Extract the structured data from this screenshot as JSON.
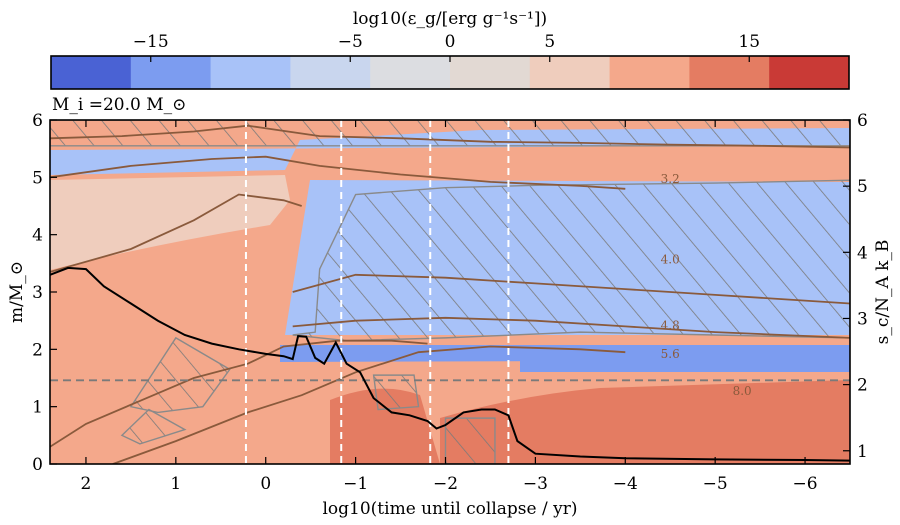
{
  "chart_data": {
    "type": "heatmap",
    "title": "",
    "annotation": "M_i =20.0 M_⊙",
    "colorbar": {
      "label": "log10(ε_g/[erg g⁻¹s⁻¹])",
      "range": [
        -20,
        20
      ],
      "ticks": [
        -15,
        -5,
        0,
        5,
        15
      ],
      "tick_labels": [
        "−15",
        "−5",
        "0",
        "5",
        "15"
      ],
      "bins": [
        -20,
        -15,
        -10,
        -5,
        -2.5,
        0,
        2.5,
        5,
        10,
        15,
        20
      ],
      "colors": [
        "#4a62d4",
        "#7c9cf0",
        "#a8c2f8",
        "#c9d6ee",
        "#dcdde1",
        "#e2d9d3",
        "#efcdbd",
        "#f4a88b",
        "#e47c62",
        "#c93a36"
      ]
    },
    "xlabel": "log10(time until collapse / yr)",
    "ylabel_left": "m/M_⊙",
    "ylabel_right": "s_c/N_A k_B",
    "xlim": [
      2.4,
      -6.5
    ],
    "ylim_left": [
      0,
      6
    ],
    "ylim_right": [
      0.8,
      6
    ],
    "xticks": [
      2,
      1,
      0,
      -1,
      -2,
      -3,
      -4,
      -5,
      -6
    ],
    "xtick_labels": [
      "2",
      "1",
      "0",
      "−1",
      "−2",
      "−3",
      "−4",
      "−5",
      "−6"
    ],
    "yticks_left": [
      0,
      1,
      2,
      3,
      4,
      5,
      6
    ],
    "yticks_right": [
      1,
      2,
      3,
      4,
      5,
      6
    ],
    "vertical_dashed_lines_x": [
      0.22,
      -0.84,
      -1.83,
      -2.7
    ],
    "horizontal_dashed_line_y": 1.46,
    "central_entropy_curve": {
      "x": [
        2.4,
        2.2,
        2.0,
        1.8,
        1.5,
        1.2,
        0.9,
        0.6,
        0.3,
        0.0,
        -0.2,
        -0.3,
        -0.36,
        -0.45,
        -0.55,
        -0.65,
        -0.78,
        -0.9,
        -1.05,
        -1.2,
        -1.4,
        -1.6,
        -1.8,
        -1.9,
        -2.0,
        -2.2,
        -2.4,
        -2.55,
        -2.7,
        -2.8,
        -3.0,
        -3.5,
        -4.0,
        -5.0,
        -6.0,
        -6.5
      ],
      "y": [
        3.3,
        3.42,
        3.4,
        3.1,
        2.8,
        2.5,
        2.25,
        2.1,
        2.0,
        1.92,
        1.88,
        1.83,
        2.23,
        2.22,
        1.85,
        1.75,
        2.12,
        1.75,
        1.6,
        1.15,
        0.9,
        0.85,
        0.75,
        0.62,
        0.68,
        0.9,
        0.95,
        0.95,
        0.85,
        0.4,
        0.18,
        0.13,
        0.1,
        0.08,
        0.07,
        0.06
      ]
    },
    "mass_contours": [
      {
        "x": [
          2.4,
          1.5,
          0.6,
          0.0,
          -0.6,
          -1.5,
          -2.5,
          -3.5,
          -4.0
        ],
        "y": [
          5.0,
          5.2,
          5.32,
          5.36,
          5.2,
          5.05,
          4.92,
          4.85,
          4.8
        ]
      },
      {
        "x": [
          2.4,
          1.5,
          0.8,
          0.3,
          -0.2,
          -0.4
        ],
        "y": [
          3.35,
          3.75,
          4.25,
          4.7,
          4.6,
          4.5
        ]
      },
      {
        "x": [
          2.4,
          1.6,
          0.8,
          0.2,
          -0.6,
          -1.5,
          -2.5,
          -3.5,
          -4.5,
          -5.5,
          -6.5
        ],
        "y": [
          5.68,
          5.72,
          5.8,
          5.9,
          5.72,
          5.68,
          5.62,
          5.6,
          5.57,
          5.55,
          5.52
        ]
      },
      {
        "x": [
          -0.3,
          -1.0,
          -2.0,
          -3.0,
          -4.0,
          -5.0,
          -6.5
        ],
        "y": [
          3.0,
          3.3,
          3.25,
          3.15,
          3.05,
          2.95,
          2.8
        ]
      },
      {
        "x": [
          -0.3,
          -1.0,
          -2.0,
          -3.0,
          -4.0,
          -5.0,
          -6.5
        ],
        "y": [
          2.4,
          2.5,
          2.55,
          2.5,
          2.4,
          2.3,
          2.2
        ]
      },
      {
        "x": [
          2.4,
          2.0,
          1.4,
          0.8,
          0.2,
          -0.2,
          -0.8,
          -1.4,
          -1.8
        ],
        "y": [
          0.3,
          0.7,
          1.1,
          1.5,
          1.75,
          2.05,
          2.15,
          2.15,
          2.1
        ]
      },
      {
        "x": [
          1.7,
          1.0,
          0.2,
          -0.4,
          -1.0,
          -1.7,
          -2.5,
          -3.5,
          -4.0
        ],
        "y": [
          0.0,
          0.4,
          0.9,
          1.2,
          1.6,
          1.95,
          2.05,
          2.0,
          1.95
        ]
      }
    ],
    "entropy_contour_labels": [
      {
        "text": "3.2",
        "x": -4.5,
        "y": 4.9
      },
      {
        "text": "4.0",
        "x": -4.5,
        "y": 3.5
      },
      {
        "text": "4.8",
        "x": -4.5,
        "y": 2.35
      },
      {
        "text": "5.6",
        "x": -4.5,
        "y": 1.85
      },
      {
        "text": "8.0",
        "x": -5.3,
        "y": 1.2
      }
    ],
    "hatched_regions": [
      {
        "x": [
          2.4,
          2.4,
          -6.5,
          -6.5
        ],
        "y": [
          5.55,
          6.0,
          6.0,
          5.55
        ]
      },
      {
        "x": [
          -0.55,
          -0.6,
          -1.0,
          -2.0,
          -3.0,
          -4.0,
          -5.0,
          -6.5,
          -6.5,
          -5.0,
          -3.5,
          -2.0,
          -0.9,
          -0.3
        ],
        "y": [
          2.3,
          3.4,
          4.7,
          4.82,
          4.86,
          4.88,
          4.9,
          4.95,
          2.2,
          2.25,
          2.3,
          2.2,
          2.15,
          2.25
        ]
      },
      {
        "x": [
          1.5,
          1.0,
          0.4,
          0.7,
          1.2
        ],
        "y": [
          1.0,
          2.2,
          1.65,
          1.0,
          0.9
        ]
      },
      {
        "x": [
          1.6,
          1.3,
          0.9,
          1.4,
          1.6
        ],
        "y": [
          0.5,
          0.95,
          0.6,
          0.35,
          0.5
        ]
      },
      {
        "x": [
          -1.25,
          -1.2,
          -1.65,
          -1.7
        ],
        "y": [
          0.95,
          1.55,
          1.55,
          1.0
        ]
      },
      {
        "x": [
          -2.0,
          -2.0,
          -2.55,
          -2.55
        ],
        "y": [
          0.0,
          0.8,
          0.8,
          0.0
        ]
      }
    ]
  }
}
